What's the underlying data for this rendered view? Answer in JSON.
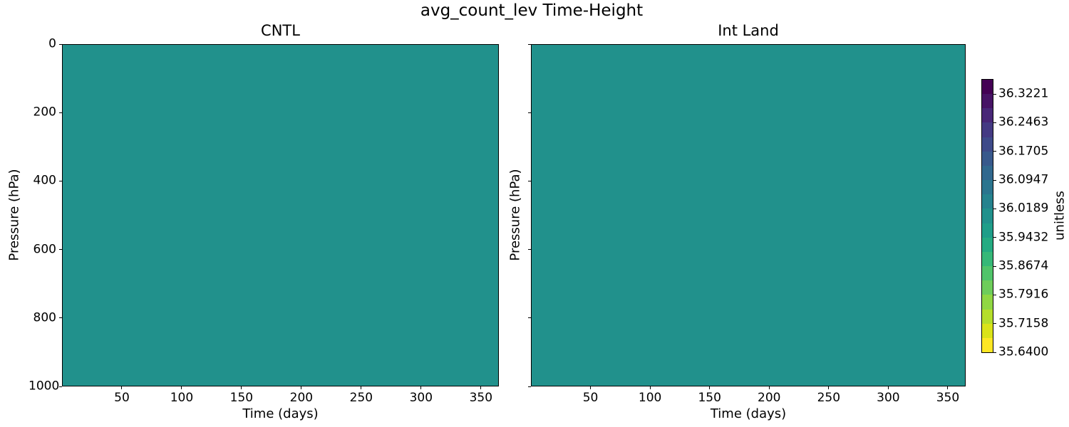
{
  "figure": {
    "title": "avg_count_lev Time-Height",
    "panels": [
      {
        "title": "CNTL",
        "xlabel": "Time (days)",
        "ylabel": "Pressure (hPa)",
        "xticks": [
          50,
          100,
          150,
          200,
          250,
          300,
          350
        ],
        "yticks": [
          0,
          200,
          400,
          600,
          800,
          1000
        ],
        "show_ytick_labels": true,
        "fill_color": "#21918c"
      },
      {
        "title": "Int Land",
        "xlabel": "Time (days)",
        "ylabel": "Pressure (hPa)",
        "xticks": [
          50,
          100,
          150,
          200,
          250,
          300,
          350
        ],
        "yticks": [
          0,
          200,
          400,
          600,
          800,
          1000
        ],
        "show_ytick_labels": false,
        "fill_color": "#21918c"
      }
    ],
    "colorbar": {
      "label": "unitless",
      "tick_labels": [
        "36.3221",
        "36.2463",
        "36.1705",
        "36.0947",
        "36.0189",
        "35.9432",
        "35.8674",
        "35.7916",
        "35.7158",
        "35.6400"
      ],
      "segment_colors": [
        "#440154",
        "#471365",
        "#482777",
        "#443a83",
        "#3e4a89",
        "#38598c",
        "#31688e",
        "#2b758e",
        "#26838e",
        "#21918c",
        "#1f9e89",
        "#25ab82",
        "#36b878",
        "#50c46a",
        "#6ecd5b",
        "#90d743",
        "#b5de2b",
        "#dae319",
        "#fde725"
      ]
    }
  },
  "chart_data": {
    "type": "heatmap",
    "title": "avg_count_lev Time-Height",
    "panels": [
      {
        "title": "CNTL",
        "xlabel": "Time (days)",
        "ylabel": "Pressure (hPa)",
        "x_range": [
          0,
          365
        ],
        "y_range": [
          0,
          1000
        ],
        "y_axis_inverted": true,
        "xticks": [
          50,
          100,
          150,
          200,
          250,
          300,
          350
        ],
        "yticks": [
          0,
          200,
          400,
          600,
          800,
          1000
        ],
        "uniform_value": 36.0,
        "note": "Field is visually uniform teal (~36.0) across all times and pressure levels"
      },
      {
        "title": "Int Land",
        "xlabel": "Time (days)",
        "ylabel": "Pressure (hPa)",
        "x_range": [
          0,
          365
        ],
        "y_range": [
          0,
          1000
        ],
        "y_axis_inverted": true,
        "xticks": [
          50,
          100,
          150,
          200,
          250,
          300,
          350
        ],
        "yticks": [
          0,
          200,
          400,
          600,
          800,
          1000
        ],
        "uniform_value": 36.0,
        "note": "Field is visually uniform teal (~36.0), identical to CNTL panel"
      }
    ],
    "colorbar": {
      "label": "unitless",
      "ticks": [
        36.3221,
        36.2463,
        36.1705,
        36.0947,
        36.0189,
        35.9432,
        35.8674,
        35.7916,
        35.7158,
        35.64
      ],
      "tick_step": 0.0758,
      "vmin": 35.64,
      "vmax": 36.36,
      "n_levels": 19,
      "colormap": "viridis_r",
      "orientation": "vertical",
      "position": "right"
    },
    "grid": false,
    "legend": false
  }
}
